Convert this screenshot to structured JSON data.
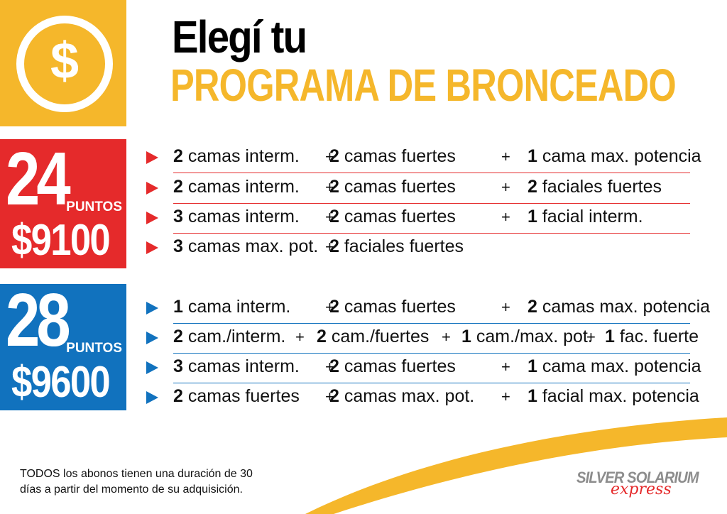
{
  "brand_colors": {
    "yellow": "#F5B72B",
    "red": "#E52A2B",
    "blue": "#1172BE"
  },
  "coin": {
    "symbol": "$",
    "icon": "dollar-coin-icon"
  },
  "title": {
    "line1": "Elegí tu",
    "line2": "PROGRAMA DE BRONCEADO"
  },
  "plans": [
    {
      "points": "24",
      "points_label": "PUNTOS",
      "price": "$9100",
      "color": "#E52A2B",
      "options": [
        {
          "parts": [
            {
              "n": "2",
              "t": " camas interm."
            },
            {
              "n": "2",
              "t": " camas fuertes"
            },
            {
              "n": "1",
              "t": " cama max. potencia"
            }
          ]
        },
        {
          "parts": [
            {
              "n": "2",
              "t": " camas interm."
            },
            {
              "n": "2",
              "t": " camas fuertes"
            },
            {
              "n": "2",
              "t": " faciales fuertes"
            }
          ]
        },
        {
          "parts": [
            {
              "n": "3",
              "t": " camas interm."
            },
            {
              "n": "2",
              "t": " camas fuertes"
            },
            {
              "n": "1",
              "t": " facial interm."
            }
          ]
        },
        {
          "parts": [
            {
              "n": "3",
              "t": " camas max. pot."
            },
            {
              "n": "2",
              "t": " faciales fuertes"
            }
          ]
        }
      ]
    },
    {
      "points": "28",
      "points_label": "PUNTOS",
      "price": "$9600",
      "color": "#1172BE",
      "options": [
        {
          "parts": [
            {
              "n": "1",
              "t": " cama interm."
            },
            {
              "n": "2",
              "t": " camas fuertes"
            },
            {
              "n": "2",
              "t": " camas max. potencia"
            }
          ]
        },
        {
          "parts": [
            {
              "n": "2",
              "t": " cam./interm."
            },
            {
              "n": "2",
              "t": " cam./fuertes"
            },
            {
              "n": "1",
              "t": " cam./max. pot."
            },
            {
              "n": "1",
              "t": " fac. fuerte"
            }
          ]
        },
        {
          "parts": [
            {
              "n": "3",
              "t": " camas interm."
            },
            {
              "n": "2",
              "t": " camas fuertes"
            },
            {
              "n": "1",
              "t": " cama max. potencia"
            }
          ]
        },
        {
          "parts": [
            {
              "n": "2",
              "t": " camas fuertes"
            },
            {
              "n": "2",
              "t": " camas max. pot."
            },
            {
              "n": "1",
              "t": " facial max. potencia"
            }
          ]
        }
      ]
    }
  ],
  "plus_sign": "+",
  "footer": {
    "note_line1": "TODOS los abonos tienen una duración de 30",
    "note_line2": "días a partir del momento de su adquisición."
  },
  "logo": {
    "line1": "SILVER SOLARIUM",
    "line2": "express"
  }
}
